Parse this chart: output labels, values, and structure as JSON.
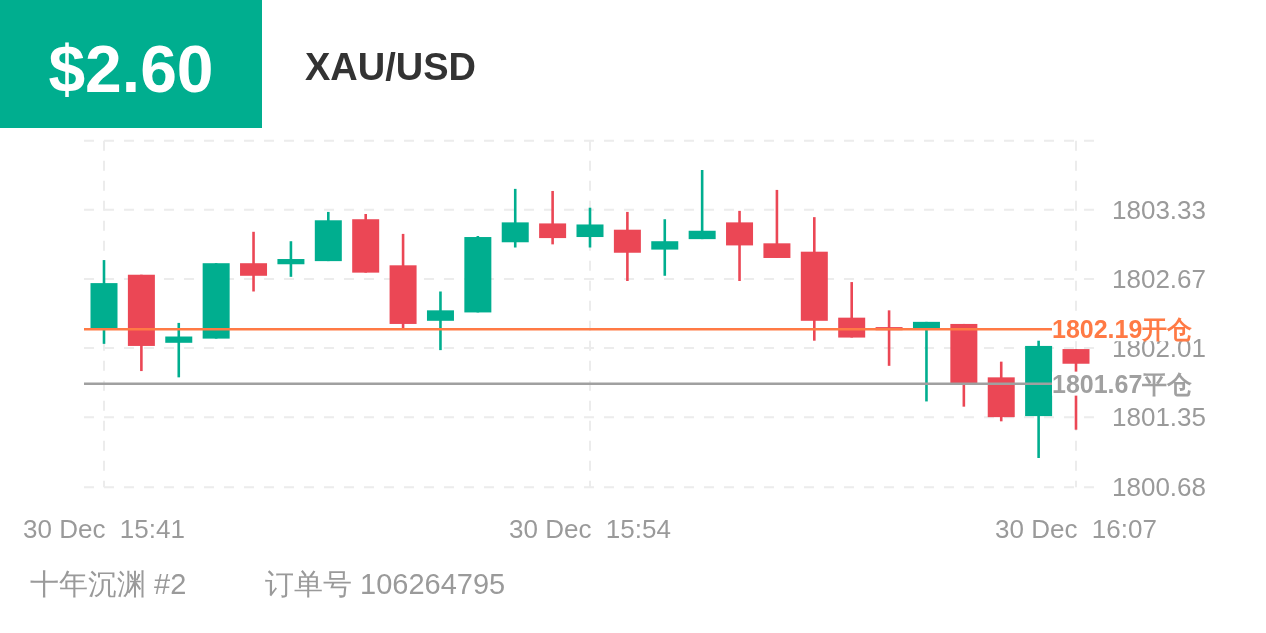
{
  "chart_data": {
    "type": "candlestick",
    "title": "XAU/USD",
    "annotations": [
      "$2.60",
      "十年沉渊 #2",
      "订单号 106264795"
    ],
    "categories": [
      "30 Dec  15:41",
      null,
      null,
      null,
      null,
      null,
      null,
      null,
      null,
      null,
      null,
      null,
      null,
      "30 Dec  15:54",
      null,
      null,
      null,
      null,
      null,
      null,
      null,
      null,
      null,
      null,
      null,
      null,
      "30 Dec  16:07"
    ],
    "ohlc": [
      [
        1802.19,
        1802.85,
        1802.05,
        1802.63
      ],
      [
        1802.71,
        1802.71,
        1801.79,
        1802.03
      ],
      [
        1802.06,
        1802.25,
        1801.73,
        1802.12
      ],
      [
        1802.1,
        1802.82,
        1802.1,
        1802.82
      ],
      [
        1802.82,
        1803.12,
        1802.55,
        1802.7
      ],
      [
        1802.81,
        1803.03,
        1802.69,
        1802.86
      ],
      [
        1802.84,
        1803.31,
        1802.84,
        1803.23
      ],
      [
        1803.24,
        1803.29,
        1802.73,
        1802.73
      ],
      [
        1802.8,
        1803.1,
        1802.2,
        1802.24
      ],
      [
        1802.27,
        1802.55,
        1801.99,
        1802.37
      ],
      [
        1802.35,
        1803.08,
        1802.35,
        1803.07
      ],
      [
        1803.02,
        1803.53,
        1802.97,
        1803.21
      ],
      [
        1803.2,
        1803.51,
        1803.0,
        1803.06
      ],
      [
        1803.07,
        1803.35,
        1802.97,
        1803.19
      ],
      [
        1803.14,
        1803.31,
        1802.65,
        1802.92
      ],
      [
        1802.95,
        1803.24,
        1802.7,
        1803.03
      ],
      [
        1803.05,
        1803.71,
        1803.05,
        1803.13
      ],
      [
        1803.21,
        1803.32,
        1802.65,
        1802.99
      ],
      [
        1803.01,
        1803.52,
        1802.87,
        1802.87
      ],
      [
        1802.93,
        1803.26,
        1802.08,
        1802.27
      ],
      [
        1802.3,
        1802.64,
        1802.11,
        1802.11
      ],
      [
        1802.21,
        1802.37,
        1801.84,
        1802.18
      ],
      [
        1802.2,
        1802.26,
        1801.5,
        1802.26
      ],
      [
        1802.24,
        1802.24,
        1801.45,
        1801.66
      ],
      [
        1801.73,
        1801.88,
        1801.31,
        1801.35
      ],
      [
        1801.36,
        1802.08,
        1800.96,
        1802.03
      ],
      [
        1802.0,
        1802.0,
        1801.23,
        1801.86
      ]
    ],
    "colors": [
      "#00ae8f",
      "#eb4755",
      "#00ae8f",
      "#00ae8f",
      "#eb4755",
      "#00ae8f",
      "#00ae8f",
      "#eb4755",
      "#eb4755",
      "#00ae8f",
      "#00ae8f",
      "#00ae8f",
      "#eb4755",
      "#00ae8f",
      "#eb4755",
      "#00ae8f",
      "#00ae8f",
      "#eb4755",
      "#eb4755",
      "#eb4755",
      "#eb4755",
      "#eb4755",
      "#00ae8f",
      "#eb4755",
      "#eb4755",
      "#00ae8f",
      "#eb4755"
    ],
    "ylim": [
      1800.68,
      1803.99
    ],
    "yticks": [
      1800.68,
      1801.35,
      1802.01,
      1802.67,
      1803.33,
      {
        "value": 1803.99,
        "label": null
      }
    ],
    "grid": true,
    "ref_lines": [
      {
        "axis": "y",
        "value": 1802.19,
        "label": "1802.19开仓",
        "color": "#ff7a45"
      },
      {
        "axis": "y",
        "value": 1801.67,
        "label": "1801.67平仓",
        "color": "#a0a0a0"
      }
    ]
  }
}
